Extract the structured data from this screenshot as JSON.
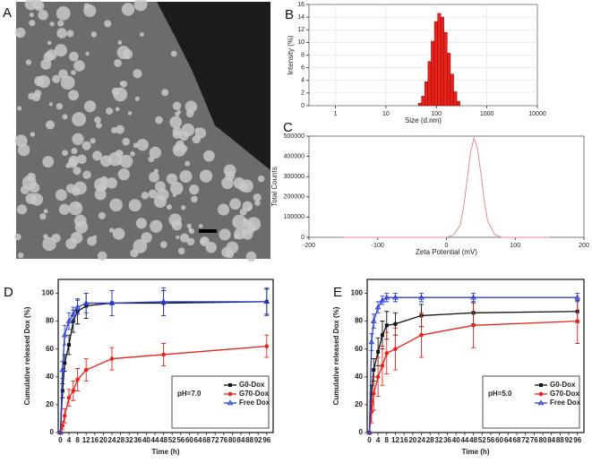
{
  "chart_data": [
    {
      "type": "image",
      "panel_label": "A"
    },
    {
      "type": "histogram",
      "panel_label": "B",
      "xlabel": "Size (d.nm)",
      "ylabel": "Intensity (%)",
      "xscale": "log",
      "grid": true,
      "color": "#e8231c",
      "bins": [
        43.8,
        50.7,
        58.8,
        68.1,
        78.8,
        91.3,
        105.7,
        122.4,
        141.8,
        164.2,
        190.1,
        220.2,
        255.0,
        295.3
      ],
      "counts": [
        0.4,
        1.5,
        3.8,
        7.0,
        10.2,
        13.3,
        14.6,
        14.0,
        11.6,
        8.3,
        5.0,
        2.2,
        0.7
      ],
      "xlim": [
        0.3,
        10000
      ],
      "xticks": [
        1,
        10,
        100,
        1000,
        10000
      ],
      "ylim": [
        0,
        16
      ],
      "yticks": [
        0,
        2,
        4,
        6,
        8,
        10,
        12,
        14,
        16
      ]
    },
    {
      "type": "line",
      "panel_label": "C",
      "xlabel": "Zeta Potential (mV)",
      "ylabel": "Total Counts",
      "color": "#e88a94",
      "x": [
        -150,
        0,
        10,
        20,
        25,
        30,
        35,
        40,
        45,
        50,
        55,
        60,
        70,
        80,
        150
      ],
      "values": [
        0,
        0,
        10000,
        60000,
        150000,
        280000,
        420000,
        490000,
        440000,
        320000,
        180000,
        80000,
        15000,
        0,
        0
      ],
      "xlim": [
        -200,
        200
      ],
      "xticks": [
        -200,
        -100,
        0,
        100,
        200
      ],
      "ylim": [
        0,
        500000
      ],
      "yticks": [
        0,
        100000,
        200000,
        300000,
        400000,
        500000
      ]
    },
    {
      "type": "line",
      "panel_label": "D",
      "xlabel": "Time (h)",
      "ylabel": "Cumulative released Dox (%)",
      "annotation": "pH=7.0",
      "legend": "lower right",
      "x": [
        0,
        1,
        2,
        4,
        6,
        8,
        12,
        24,
        48,
        96
      ],
      "series": [
        {
          "name": "G0-Dox",
          "color": "#111111",
          "marker": "square",
          "values": [
            0,
            30,
            50,
            63,
            80,
            87,
            91,
            93,
            93,
            94
          ],
          "errors": [
            0,
            5,
            6,
            7,
            8,
            9,
            9,
            9,
            9,
            9
          ]
        },
        {
          "name": "G70-Dox",
          "color": "#e8231c",
          "marker": "circle",
          "values": [
            0,
            5,
            12,
            25,
            30,
            38,
            45,
            53,
            56,
            62
          ],
          "errors": [
            0,
            3,
            5,
            6,
            7,
            8,
            8,
            8,
            8,
            8
          ]
        },
        {
          "name": "Free Dox",
          "color": "#2a3fd6",
          "marker": "triangle",
          "values": [
            0,
            45,
            70,
            80,
            85,
            90,
            93,
            93,
            94,
            94
          ],
          "errors": [
            0,
            6,
            7,
            6,
            5,
            5,
            7,
            9,
            10,
            10
          ]
        }
      ],
      "xlim": [
        -1,
        99
      ],
      "xticks": [
        0,
        4,
        8,
        12,
        16,
        20,
        24,
        28,
        32,
        36,
        40,
        44,
        48,
        52,
        56,
        60,
        64,
        68,
        72,
        76,
        80,
        84,
        88,
        92,
        96
      ],
      "ylim": [
        0,
        110
      ],
      "yticks": [
        0,
        20,
        40,
        60,
        80,
        100
      ]
    },
    {
      "type": "line",
      "panel_label": "E",
      "xlabel": "Time (h)",
      "ylabel": "Cumulative released Dox (%)",
      "annotation": "pH=5.0",
      "legend": "lower right",
      "x": [
        0,
        1,
        2,
        4,
        6,
        8,
        12,
        24,
        48,
        96
      ],
      "series": [
        {
          "name": "G0-Dox",
          "color": "#111111",
          "marker": "square",
          "values": [
            0,
            28,
            45,
            58,
            70,
            77,
            78,
            84,
            86,
            87
          ],
          "errors": [
            0,
            6,
            8,
            10,
            10,
            10,
            8,
            8,
            8,
            8
          ]
        },
        {
          "name": "G70-Dox",
          "color": "#e8231c",
          "marker": "circle",
          "values": [
            0,
            15,
            28,
            40,
            48,
            57,
            60,
            70,
            77,
            80
          ],
          "errors": [
            0,
            8,
            12,
            14,
            14,
            15,
            15,
            16,
            16,
            16
          ]
        },
        {
          "name": "Free Dox",
          "color": "#2a3fd6",
          "marker": "triangle",
          "values": [
            0,
            65,
            80,
            90,
            95,
            97,
            97,
            97,
            97,
            97
          ],
          "errors": [
            0,
            6,
            5,
            4,
            3,
            3,
            3,
            3,
            3,
            3
          ]
        }
      ],
      "xlim": [
        -1,
        99
      ],
      "xticks": [
        0,
        4,
        8,
        12,
        16,
        20,
        24,
        28,
        32,
        36,
        40,
        44,
        48,
        52,
        56,
        60,
        64,
        68,
        72,
        76,
        80,
        84,
        88,
        92,
        96
      ],
      "ylim": [
        0,
        110
      ],
      "yticks": [
        0,
        20,
        40,
        60,
        80,
        100
      ]
    }
  ]
}
